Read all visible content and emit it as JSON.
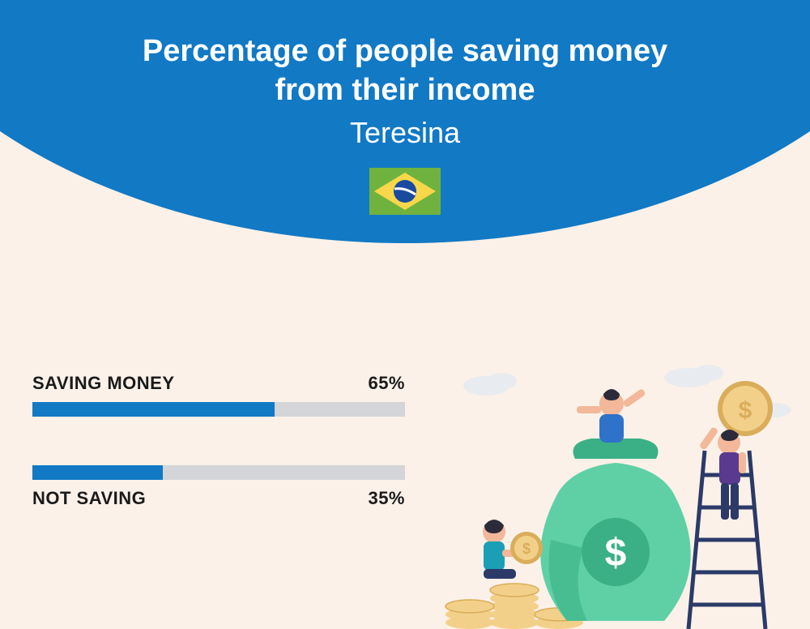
{
  "header": {
    "title_line1": "Percentage of people saving money",
    "title_line2": "from their income",
    "subtitle": "Teresina",
    "arc_color": "#1279c4",
    "text_color": "#ffffff"
  },
  "background_color": "#fbf1e8",
  "flag": {
    "field_color": "#6fb33e",
    "rhombus_color": "#f8d74a",
    "circle_color": "#1a4aa0",
    "band_color": "#ffffff"
  },
  "bars": [
    {
      "label": "SAVING MONEY",
      "value_text": "65%",
      "value": 65,
      "label_above": true
    },
    {
      "label": "NOT SAVING",
      "value_text": "35%",
      "value": 35,
      "label_above": false
    }
  ],
  "bar_style": {
    "track_color": "#d3d5d8",
    "fill_color": "#1279c4",
    "track_height": 18,
    "label_fontsize": 22,
    "label_color": "#1a1a1a"
  },
  "illustration": {
    "bag_color": "#5fd0a6",
    "bag_shadow": "#3bb086",
    "coin_fill": "#f3d08a",
    "coin_edge": "#d9ad5a",
    "ladder_color": "#2b3a67",
    "person1_shirt": "#2f72c9",
    "person1_pants": "#2b3a67",
    "person1_skin": "#f2b899",
    "person2_shirt": "#5a3a8e",
    "person2_pants": "#2b3a67",
    "person2_skin": "#f2b899",
    "person3_shirt": "#1a9fb5",
    "person3_pants": "#2b3a67",
    "person3_skin": "#f2b899",
    "cloud_color": "#e8ebf0"
  }
}
